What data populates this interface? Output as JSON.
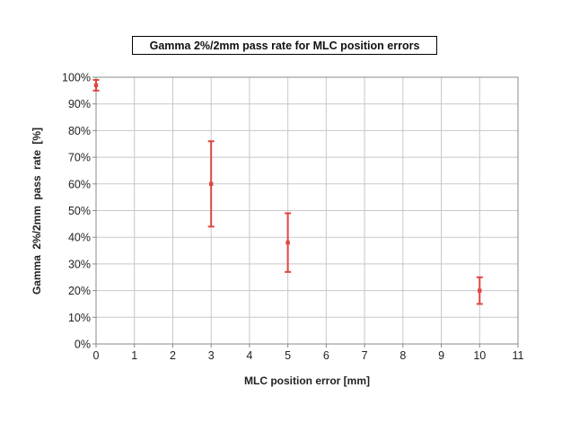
{
  "chart_data": {
    "type": "scatter",
    "title": "Gamma 2%/2mm pass rate for MLC position errors",
    "xlabel": "MLC position error [mm]",
    "ylabel": "Gamma  2%/2mm  pass  rate  [%]",
    "xlim": [
      0,
      11
    ],
    "ylim": [
      0,
      100
    ],
    "x_ticks": [
      "0",
      "1",
      "2",
      "3",
      "4",
      "5",
      "6",
      "7",
      "8",
      "9",
      "10",
      "11"
    ],
    "y_ticks": [
      "0%",
      "10%",
      "20%",
      "30%",
      "40%",
      "50%",
      "60%",
      "70%",
      "80%",
      "90%",
      "100%"
    ],
    "grid": true,
    "legend": "none",
    "series": [
      {
        "color": "#e0463f",
        "points": [
          {
            "x": 0,
            "y": 97,
            "y_low": 95,
            "y_high": 99
          },
          {
            "x": 3,
            "y": 60,
            "y_low": 44,
            "y_high": 76
          },
          {
            "x": 5,
            "y": 38,
            "y_low": 27,
            "y_high": 49
          },
          {
            "x": 10,
            "y": 20,
            "y_low": 15,
            "y_high": 25
          }
        ]
      }
    ]
  }
}
